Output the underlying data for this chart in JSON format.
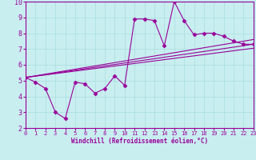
{
  "title": "",
  "xlabel": "Windchill (Refroidissement éolien,°C)",
  "ylabel": "",
  "bg_color": "#c8eef0",
  "line_color": "#990099",
  "grid_color": "#aadddd",
  "xlim": [
    0,
    23
  ],
  "ylim": [
    2,
    10
  ],
  "xticks": [
    0,
    1,
    2,
    3,
    4,
    5,
    6,
    7,
    8,
    9,
    10,
    11,
    12,
    13,
    14,
    15,
    16,
    17,
    18,
    19,
    20,
    21,
    22,
    23
  ],
  "yticks": [
    2,
    3,
    4,
    5,
    6,
    7,
    8,
    9,
    10
  ],
  "series1_x": [
    0,
    1,
    2,
    3,
    4,
    5,
    6,
    7,
    8,
    9,
    10,
    11,
    12,
    13,
    14,
    15,
    16,
    17,
    18,
    19,
    20,
    21,
    22,
    23
  ],
  "series1_y": [
    5.2,
    4.9,
    4.5,
    3.0,
    2.6,
    4.9,
    4.8,
    4.2,
    4.5,
    5.3,
    4.7,
    8.9,
    8.9,
    8.8,
    7.2,
    10.0,
    8.8,
    7.9,
    8.0,
    8.0,
    7.8,
    7.5,
    7.3,
    7.3
  ],
  "trend_lines": [
    {
      "x": [
        0,
        23
      ],
      "y": [
        5.2,
        7.6
      ]
    },
    {
      "x": [
        0,
        23
      ],
      "y": [
        5.2,
        7.3
      ]
    },
    {
      "x": [
        0,
        23
      ],
      "y": [
        5.2,
        7.05
      ]
    }
  ]
}
